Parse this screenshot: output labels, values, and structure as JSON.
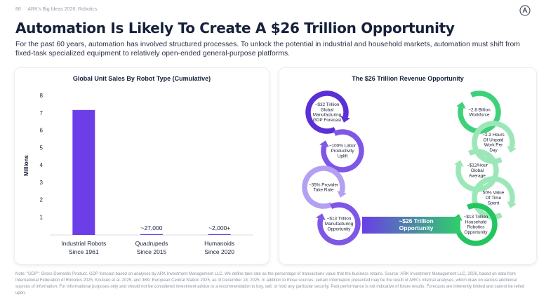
{
  "header": {
    "page_number": "86",
    "source": "ARK's Big Ideas 2026: Robotics"
  },
  "title": "Automation Is Likely To Create A $26 Trillion Opportunity",
  "subtitle": "For the past 60 years, automation has involved structured processes. To unlock the potential in industrial and household markets, automation must shift from fixed-task specialized equipment to relatively open-ended general-purpose platforms.",
  "chart_data": [
    {
      "type": "bar",
      "title": "Global Unit Sales By Robot Type (Cumulative)",
      "ylabel": "Millions",
      "ylim": [
        0,
        8
      ],
      "yticks": [
        "1",
        "2",
        "3",
        "4",
        "5",
        "6",
        "7",
        "8"
      ],
      "categories": [
        {
          "name": "Industrial Robots",
          "since": "Since 1961"
        },
        {
          "name": "Quadrupeds",
          "since": "Since 2015"
        },
        {
          "name": "Humanoids",
          "since": "Since 2020"
        }
      ],
      "values": [
        7.2,
        0.027,
        0.002
      ],
      "data_labels": [
        "",
        "~27,000",
        "~2,000+"
      ],
      "grid": false,
      "bar_color": "#6c3ee8"
    }
  ],
  "diagram": {
    "title": "The $26 Trillion Revenue Opportunity",
    "left_chain": [
      {
        "text": "~$32 Trillion\nGlobal\nManufacturing\nGDP Forecast",
        "color": "#5b2fd6"
      },
      {
        "text": "~100% Labor\nProductivity\nUplift",
        "color": "#7f57e6"
      },
      {
        "text": "~35% Provider\nTake Rate",
        "color": "#b4a0f3"
      },
      {
        "text": "~$13 Trillion\nManufacturing\nOpportunity",
        "color": "#7f57e6"
      }
    ],
    "right_chain": [
      {
        "text": "~2.8 Billion\nWorkforce",
        "color": "#3fd07a"
      },
      {
        "text": "~2.3 Hours\nOf Unpaid\nWork Per\nDay",
        "color": "#9ce7b8"
      },
      {
        "text": "~$12/Hour\nGlobal\nAverage",
        "color": "#9ce7b8"
      },
      {
        "text": "50% Value\nOf Time\nSpent",
        "color": "#9ce7b8"
      },
      {
        "text": "~$13 Trillion\nHousehold\nRobotics\nOpportunity",
        "color": "#22c55e"
      }
    ],
    "result": "~$26 Trillion\nOpportunity"
  },
  "note": "Note: \"GDP\": Gross Domestic Product. GDP forecast based on analyses by ARK Investment Management LLC. We define take rate as the percentage of transactions value that the business retains. Source: ARK Investment Management LLC, 2026, based on data from International Federation of Robotics 2025, Knutsen et al. 2025, and 36Kr European Central Station 2025, as of December 18, 2025. In addition to those sources, certain information presented may be the result of ARK's internal analyses, which draw on various additional sources of information. For informational purposes only and should not be considered investment advice or a recommendation to buy, sell, or hold any particular security. Past performance is not indicative of future results. Forecasts are inherently limited and cannot be relied upon."
}
